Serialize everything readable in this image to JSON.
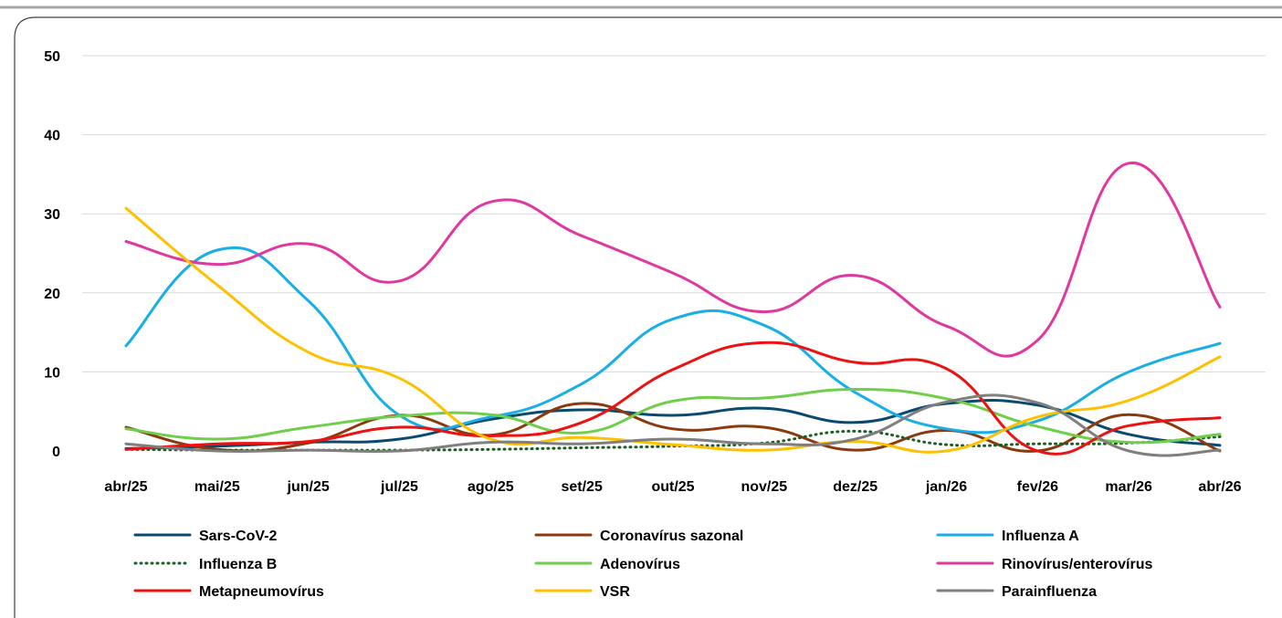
{
  "chart_data": {
    "type": "line",
    "title": "",
    "xlabel": "",
    "ylabel": "",
    "ylim": [
      0,
      50
    ],
    "yticks": [
      "0",
      "10",
      "20",
      "30",
      "40",
      "50"
    ],
    "categories": [
      "abr/25",
      "mai/25",
      "jun/25",
      "jul/25",
      "ago/25",
      "set/25",
      "out/25",
      "nov/25",
      "dez/25",
      "jan/26",
      "fev/26",
      "mar/26",
      "abr/26"
    ],
    "grid": "horizontal",
    "legend_position": "bottom",
    "series": [
      {
        "name": "Sars-CoV-2",
        "color": "#0b4a6f",
        "dash": "solid",
        "values": [
          0.3,
          0.6,
          1.1,
          1.5,
          4.0,
          5.2,
          4.5,
          5.4,
          3.6,
          6.0,
          5.8,
          2.1,
          0.7
        ]
      },
      {
        "name": "Coronavírus sazonal",
        "color": "#8b3a0f",
        "dash": "solid",
        "values": [
          3.0,
          0.2,
          1.0,
          4.5,
          2.0,
          6.0,
          2.8,
          3.0,
          0.1,
          2.6,
          0.0,
          4.6,
          0.0
        ]
      },
      {
        "name": "Influenza A",
        "color": "#18aee6",
        "dash": "solid",
        "values": [
          13.3,
          25.4,
          19.0,
          4.5,
          4.3,
          8.5,
          16.7,
          15.9,
          7.4,
          2.8,
          3.8,
          10.0,
          13.6
        ]
      },
      {
        "name": "Influenza B",
        "color": "#1a5e20",
        "dash": "dotted",
        "values": [
          0.2,
          0.1,
          0.1,
          0.1,
          0.2,
          0.4,
          0.6,
          1.0,
          2.5,
          0.8,
          0.9,
          1.0,
          1.8
        ]
      },
      {
        "name": "Adenovírus",
        "color": "#6fce4a",
        "dash": "solid",
        "values": [
          2.8,
          1.5,
          3.0,
          4.4,
          4.6,
          2.3,
          6.3,
          6.7,
          7.8,
          6.6,
          3.1,
          1.1,
          2.1
        ]
      },
      {
        "name": "Rinovírus/enterovírus",
        "color": "#e0389f",
        "dash": "solid",
        "values": [
          26.5,
          23.6,
          26.2,
          21.5,
          31.5,
          27.2,
          22.5,
          17.6,
          22.2,
          15.8,
          14.0,
          36.4,
          18.2
        ]
      },
      {
        "name": "Metapneumovírus",
        "color": "#ee1111",
        "dash": "solid",
        "values": [
          0.2,
          0.9,
          1.2,
          3.0,
          1.9,
          3.6,
          10.3,
          13.7,
          11.2,
          10.4,
          0.0,
          3.2,
          4.2
        ]
      },
      {
        "name": "VSR",
        "color": "#ffc000",
        "dash": "solid",
        "values": [
          30.7,
          21.0,
          12.5,
          9.2,
          1.5,
          1.7,
          0.8,
          0.1,
          1.2,
          0.0,
          4.3,
          6.4,
          11.9
        ]
      },
      {
        "name": "Parainfluenza",
        "color": "#7f7f7f",
        "dash": "solid",
        "values": [
          0.9,
          0.0,
          0.1,
          0.0,
          1.1,
          0.9,
          1.5,
          0.9,
          1.5,
          6.2,
          6.1,
          0.0,
          0.1
        ]
      }
    ]
  }
}
